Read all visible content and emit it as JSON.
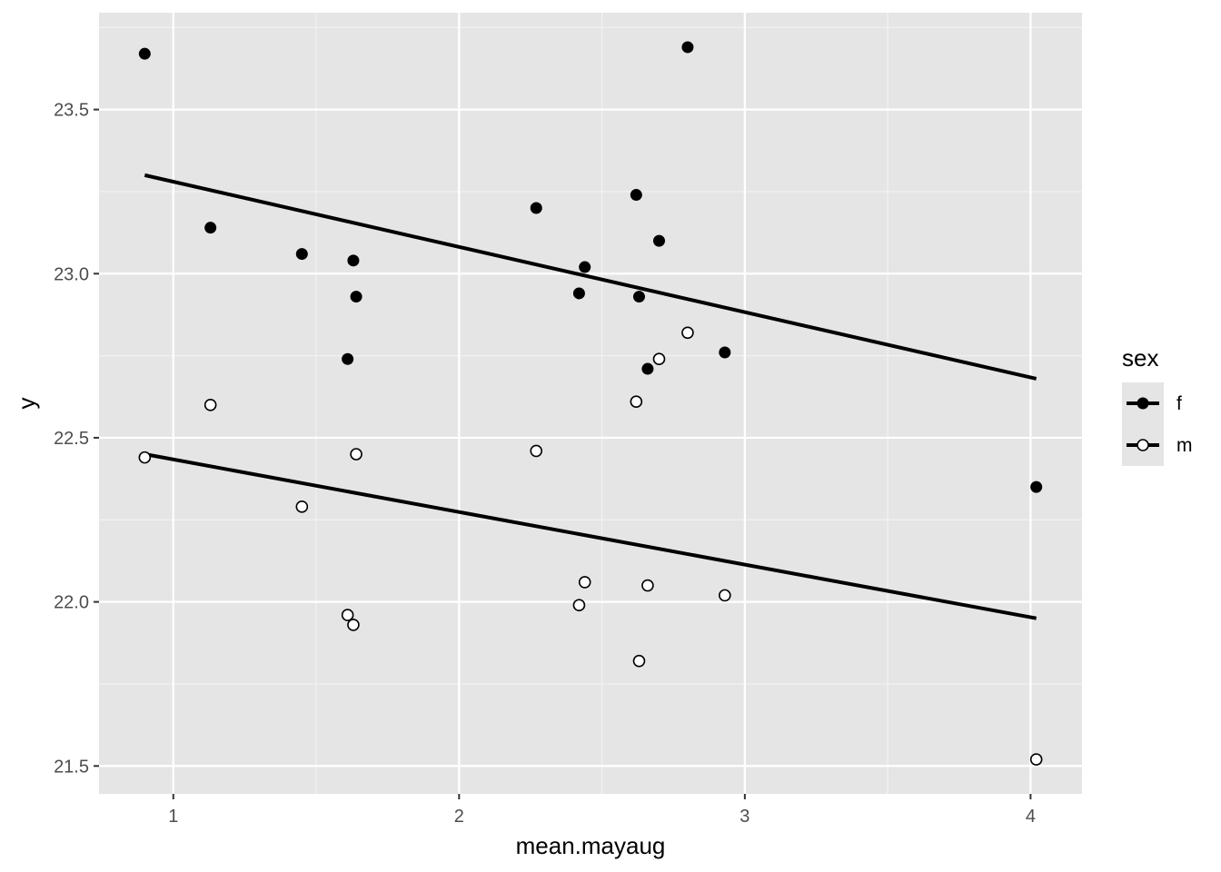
{
  "chart_data": {
    "type": "scatter",
    "xlabel": "mean.mayaug",
    "ylabel": "y",
    "xlim": [
      0.74,
      4.18
    ],
    "ylim": [
      21.415,
      23.795
    ],
    "x_ticks": [
      1,
      2,
      3,
      4
    ],
    "x_tick_labels": [
      "1",
      "2",
      "3",
      "4"
    ],
    "y_ticks": [
      21.5,
      22.0,
      22.5,
      23.0,
      23.5
    ],
    "y_tick_labels": [
      "21.5",
      "22.0",
      "22.5",
      "23.0",
      "23.5"
    ],
    "grid": true,
    "legend": {
      "title": "sex",
      "position": "right",
      "entries": [
        {
          "label": "f",
          "marker": "filled-circle"
        },
        {
          "label": "m",
          "marker": "open-circle"
        }
      ]
    },
    "colors": {
      "panel": "#e5e5e5",
      "grid_major": "#ffffff",
      "points": "#000000",
      "lines": "#000000"
    },
    "series": [
      {
        "name": "f",
        "marker": "filled",
        "points": [
          [
            0.9,
            23.67
          ],
          [
            1.13,
            23.14
          ],
          [
            1.45,
            23.06
          ],
          [
            1.61,
            22.74
          ],
          [
            1.63,
            23.04
          ],
          [
            1.64,
            22.93
          ],
          [
            2.27,
            23.2
          ],
          [
            2.42,
            22.94
          ],
          [
            2.44,
            23.02
          ],
          [
            2.62,
            23.24
          ],
          [
            2.63,
            22.93
          ],
          [
            2.66,
            22.71
          ],
          [
            2.7,
            23.1
          ],
          [
            2.8,
            23.69
          ],
          [
            2.93,
            22.76
          ],
          [
            4.02,
            22.35
          ]
        ],
        "fit": [
          [
            0.9,
            23.3
          ],
          [
            4.02,
            22.68
          ]
        ]
      },
      {
        "name": "m",
        "marker": "open",
        "points": [
          [
            0.9,
            22.44
          ],
          [
            1.13,
            22.6
          ],
          [
            1.45,
            22.29
          ],
          [
            1.61,
            21.96
          ],
          [
            1.63,
            21.93
          ],
          [
            1.64,
            22.45
          ],
          [
            2.27,
            22.46
          ],
          [
            2.42,
            21.99
          ],
          [
            2.44,
            22.06
          ],
          [
            2.62,
            22.61
          ],
          [
            2.63,
            21.82
          ],
          [
            2.66,
            22.05
          ],
          [
            2.7,
            22.74
          ],
          [
            2.8,
            22.82
          ],
          [
            2.93,
            22.02
          ],
          [
            4.02,
            21.52
          ]
        ],
        "fit": [
          [
            0.9,
            22.45
          ],
          [
            4.02,
            21.95
          ]
        ]
      }
    ]
  }
}
